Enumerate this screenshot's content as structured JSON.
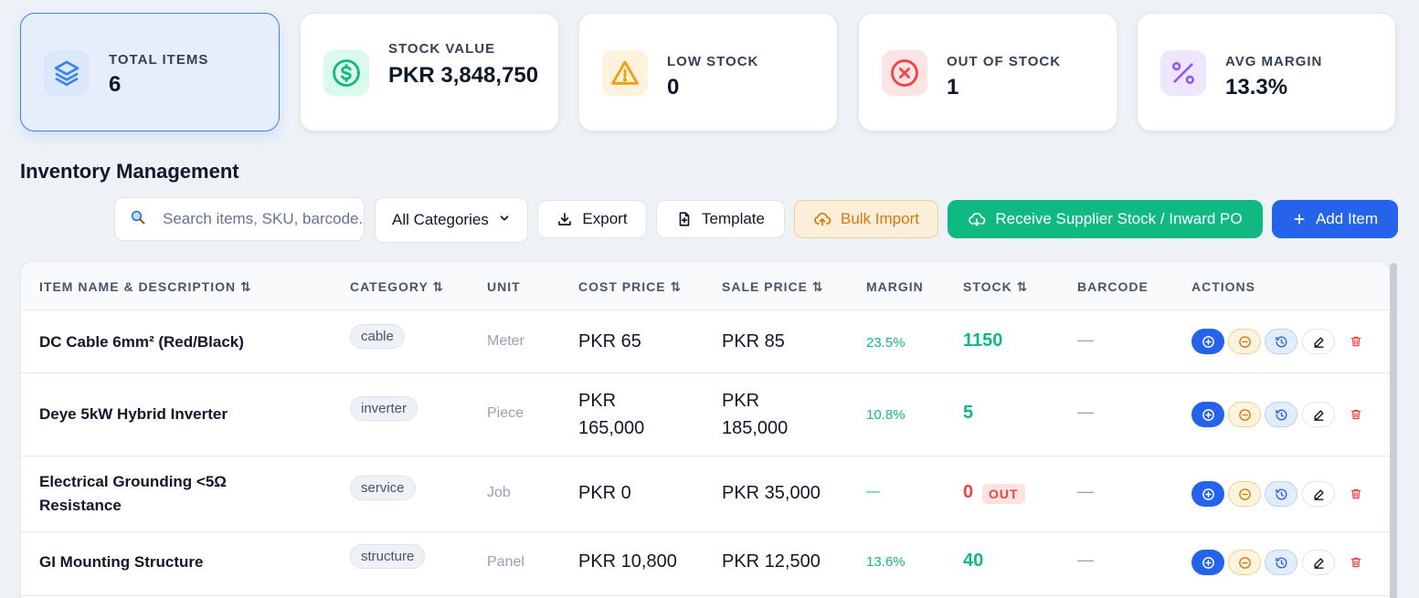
{
  "stats": [
    {
      "label": "TOTAL ITEMS",
      "value": "6",
      "icon": "layers-icon",
      "color": "#3b82f6"
    },
    {
      "label": "STOCK VALUE",
      "value": "PKR 3,848,750",
      "icon": "dollar-circle-icon",
      "color": "#10b981"
    },
    {
      "label": "LOW STOCK",
      "value": "0",
      "icon": "warning-triangle-icon",
      "color": "#f59e0b"
    },
    {
      "label": "OUT OF STOCK",
      "value": "1",
      "icon": "x-circle-icon",
      "color": "#ef4444"
    },
    {
      "label": "AVG MARGIN",
      "value": "13.3%",
      "icon": "percent-icon",
      "color": "#8b5cf6"
    }
  ],
  "page": {
    "title": "Inventory Management"
  },
  "toolbar": {
    "search_placeholder": "Search items, SKU, barcode...",
    "category_selected": "All Categories",
    "export_label": "Export",
    "template_label": "Template",
    "bulk_import_label": "Bulk Import",
    "receive_label": "Receive Supplier Stock / Inward PO",
    "add_item_label": "Add Item"
  },
  "table": {
    "columns": {
      "name": "ITEM NAME & DESCRIPTION ⇅",
      "category": "CATEGORY ⇅",
      "unit": "UNIT",
      "cost": "COST PRICE ⇅",
      "sale": "SALE PRICE ⇅",
      "margin": "MARGIN",
      "stock": "STOCK ⇅",
      "barcode": "BARCODE",
      "actions": "ACTIONS"
    },
    "rows": [
      {
        "name": "DC Cable 6mm² (Red/Black)",
        "category": "cable",
        "unit": "Meter",
        "cost": "PKR 65",
        "sale": "PKR 85",
        "margin": "23.5%",
        "stock": "1150",
        "barcode": "—"
      },
      {
        "name": "Deye 5kW Hybrid Inverter",
        "category": "inverter",
        "unit": "Piece",
        "cost": "PKR 165,000",
        "sale": "PKR 185,000",
        "margin": "10.8%",
        "stock": "5",
        "barcode": "—"
      },
      {
        "name": "Electrical Grounding <5Ω Resistance",
        "category": "service",
        "unit": "Job",
        "cost": "PKR 0",
        "sale": "PKR 35,000",
        "margin": "—",
        "stock": "0",
        "stock_badge": "OUT",
        "barcode": "—"
      },
      {
        "name": "GI Mounting Structure",
        "category": "structure",
        "unit": "Panel",
        "cost": "PKR 10,800",
        "sale": "PKR 12,500",
        "margin": "13.6%",
        "stock": "40",
        "barcode": "—"
      }
    ],
    "row_actions": [
      "add-stock-icon",
      "remove-stock-icon",
      "history-icon",
      "edit-icon",
      "delete-icon"
    ]
  }
}
